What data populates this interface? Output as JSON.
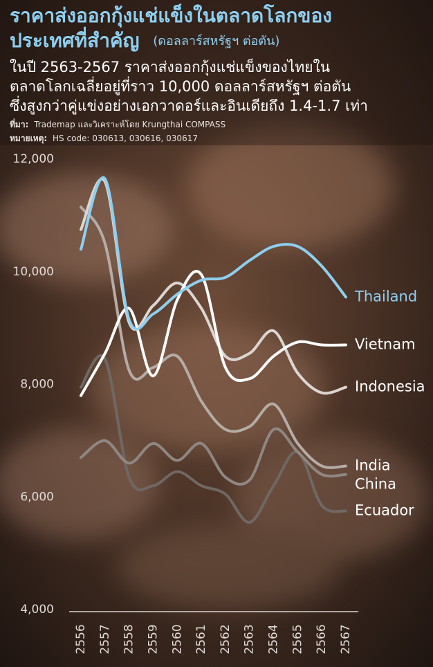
{
  "chart_data": {
    "type": "line",
    "title": [
      "ราคาส่งออกกุ้งแช่แข็งในตลาดโลกของ",
      "ประเทศที่สำคัญ"
    ],
    "unit": "(ดอลลาร์สหรัฐฯ ต่อตัน)",
    "subtitle": [
      "ในปี 2563-2567 ราคาส่งออกกุ้งแช่แข็งของไทยใน",
      "ตลาดโลกเฉลี่ยอยู่ที่ราว 10,000 ดอลลาร์สหรัฐฯ ต่อตัน",
      "ซึ่งสูงกว่าคู่แข่งอย่างเอกวาดอร์และอินเดียถึง 1.4-1.7 เท่า"
    ],
    "source_label": "ที่มา:",
    "source": "Trademap และวิเคราะห์โดย Krungthai COMPASS",
    "note_label": "หมายเหตุ:",
    "note": "HS code: 030613, 030616, 030617",
    "categories": [
      "2556",
      "2557",
      "2558",
      "2559",
      "2560",
      "2561",
      "2562",
      "2563",
      "2564",
      "2565",
      "2566",
      "2567"
    ],
    "series": [
      {
        "name": "Ecuador",
        "color": "#6f6863",
        "label_color": "#ffffff",
        "values": [
          7950,
          8450,
          6350,
          6200,
          6450,
          6200,
          6050,
          5550,
          6200,
          6800,
          5850,
          5750
        ]
      },
      {
        "name": "China",
        "color": "#8f8782",
        "label_color": "#ffffff",
        "values": [
          6700,
          7000,
          6600,
          6950,
          6650,
          6950,
          6350,
          6300,
          7200,
          6800,
          6400,
          6400
        ]
      },
      {
        "name": "India",
        "color": "#b5aca6",
        "label_color": "#ffffff",
        "values": [
          11150,
          10500,
          8250,
          8300,
          8500,
          7700,
          7200,
          7250,
          7650,
          6950,
          6550,
          6550
        ]
      },
      {
        "name": "Indonesia",
        "color": "#dcd6d2",
        "label_color": "#ffffff",
        "values": [
          10750,
          11600,
          9100,
          9400,
          9800,
          9350,
          8500,
          8550,
          8950,
          8200,
          7850,
          7950
        ]
      },
      {
        "name": "Vietnam",
        "color": "#ffffff",
        "label_color": "#ffffff",
        "values": [
          7800,
          8550,
          9350,
          8150,
          9500,
          9950,
          8300,
          8100,
          8500,
          8750,
          8700,
          8700
        ]
      },
      {
        "name": "Thailand",
        "color": "#8ecff0",
        "label_color": "#8ecff0",
        "values": [
          10400,
          11650,
          9150,
          9250,
          9600,
          9850,
          9900,
          10200,
          10450,
          10450,
          10100,
          9550
        ]
      }
    ],
    "ylim": [
      4000,
      12000
    ],
    "yticks": [
      {
        "value": 4000,
        "label": "4,000"
      },
      {
        "value": 6000,
        "label": "6,000"
      },
      {
        "value": 8000,
        "label": "8,000"
      },
      {
        "value": 10000,
        "label": "10,000"
      },
      {
        "value": 12000,
        "label": "12,000"
      }
    ]
  }
}
